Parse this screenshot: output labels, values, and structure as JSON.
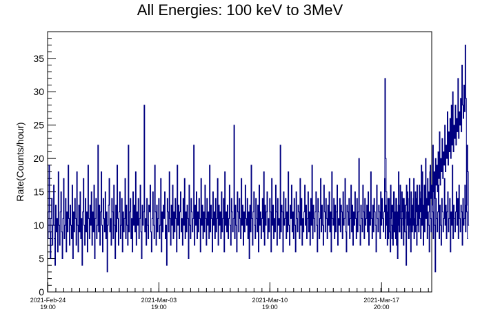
{
  "chart_data": {
    "type": "line",
    "title": "All Energies:  100 keV to 3MeV",
    "xlabel": "",
    "ylabel": "Rate(Counts/hour)",
    "ylim": [
      0,
      39
    ],
    "xlim": [
      "2021-02-24T18:30",
      "2021-03-21T00:00"
    ],
    "grid": false,
    "legend": "none",
    "line_color": "#000080",
    "y_ticks": [
      0,
      5,
      10,
      15,
      20,
      25,
      30,
      35
    ],
    "x_ticks": [
      {
        "at": "2021-02-24T19:00",
        "date": "2021-Feb-24",
        "time": "19:00"
      },
      {
        "at": "2021-03-03T19:00",
        "date": "2021-Mar-03",
        "time": "19:00"
      },
      {
        "at": "2021-03-10T19:00",
        "date": "2021-Mar-10",
        "time": "19:00"
      },
      {
        "at": "2021-03-17T20:00",
        "date": "2021-Mar-17",
        "time": "20:00"
      }
    ],
    "series": [
      {
        "segments": [
          {
            "start": "2021-02-24T18:30",
            "step_hours": 1,
            "values": [
              8,
              12,
              19,
              9,
              5,
              11,
              14,
              7,
              10,
              16,
              8,
              4,
              13,
              9,
              11,
              6,
              18,
              10,
              7,
              12,
              15,
              9,
              5,
              11,
              17,
              8,
              10,
              14,
              6,
              12,
              9,
              19,
              11,
              7,
              13,
              10,
              8,
              16,
              5,
              12,
              9,
              14,
              11,
              7,
              18,
              10,
              6,
              13,
              9,
              15,
              8,
              11,
              4,
              12,
              17,
              10,
              7,
              14,
              9,
              12,
              6,
              19,
              11,
              8,
              13,
              10,
              15,
              7,
              12,
              9,
              16,
              5,
              11,
              14,
              8,
              10,
              22,
              9,
              13,
              7,
              12,
              18,
              10,
              6,
              14,
              11,
              9,
              15,
              8,
              12,
              3,
              10,
              13,
              17,
              9,
              11,
              7,
              14,
              12,
              8,
              16,
              10,
              5,
              13,
              9,
              19,
              11,
              7,
              12,
              15,
              8,
              10,
              14,
              6,
              12,
              9,
              11,
              17,
              8,
              13,
              10,
              7,
              22,
              9,
              12,
              14,
              8,
              11,
              6,
              15,
              10,
              13,
              9,
              18,
              7,
              12,
              10,
              14,
              8,
              11,
              16,
              9,
              5,
              13,
              10,
              12,
              28,
              9,
              11,
              7,
              14,
              10,
              8,
              13,
              12,
              16,
              9,
              6,
              11,
              15,
              10,
              8,
              19,
              12,
              7,
              13,
              9,
              11,
              14,
              8,
              10,
              17,
              6,
              12,
              9,
              13,
              11,
              15,
              8,
              10,
              4,
              14,
              12,
              9,
              18,
              11,
              7,
              13,
              10,
              16,
              8,
              12,
              9,
              14,
              11,
              6,
              19,
              10,
              13,
              8,
              12,
              15,
              9,
              11,
              7,
              14,
              10,
              17,
              8,
              12,
              9,
              13,
              11,
              5,
              16,
              10,
              8,
              14,
              12,
              9,
              11,
              22,
              7,
              13,
              10,
              15,
              8,
              12,
              9,
              14,
              11,
              6,
              17,
              10,
              13,
              8,
              12,
              9,
              16,
              11,
              7,
              14,
              10,
              12,
              8,
              19,
              9,
              13,
              11,
              6,
              15,
              10,
              12,
              8,
              14,
              9,
              11,
              17,
              7,
              13,
              10,
              12,
              8,
              15,
              9,
              11,
              14,
              6,
              18,
              10,
              12,
              9,
              13,
              8,
              11,
              16,
              10,
              7,
              14,
              12,
              9,
              11,
              25,
              8,
              13,
              10,
              6,
              15,
              12,
              9,
              14,
              11,
              8,
              17,
              10,
              13,
              7,
              12,
              9,
              16,
              11,
              10,
              14,
              8,
              12,
              5,
              13,
              9,
              19,
              11,
              7,
              12,
              15,
              10,
              8,
              14,
              11,
              9,
              13,
              6,
              16,
              10,
              12,
              8,
              11,
              14,
              9,
              18,
              7,
              13,
              10,
              12,
              15,
              8,
              11,
              9,
              14,
              12,
              6,
              17,
              10,
              13,
              8,
              11,
              9,
              16,
              12,
              7,
              14,
              10,
              11,
              8,
              22,
              9,
              13,
              12,
              6,
              15,
              10,
              11,
              14,
              8,
              12,
              9,
              18,
              10,
              7,
              13,
              11,
              16,
              9,
              12,
              8,
              14,
              10,
              6,
              15,
              11,
              9,
              13,
              12,
              8,
              17,
              10,
              14,
              7,
              11,
              9,
              12,
              16,
              10,
              13,
              8,
              11,
              15,
              9,
              12,
              7,
              14,
              10,
              19,
              8,
              13,
              11,
              9,
              12,
              15,
              10,
              6,
              14,
              12,
              8,
              11,
              17,
              9,
              13,
              10,
              7,
              16,
              12,
              9,
              14,
              11,
              8,
              13,
              10,
              15,
              9,
              12,
              6,
              18,
              11,
              10,
              14,
              8,
              13,
              9,
              12,
              16,
              7,
              11,
              10,
              14,
              9,
              13,
              12,
              8,
              15,
              10,
              11,
              17,
              9,
              6,
              13,
              12,
              10,
              14,
              8,
              11,
              16,
              9,
              13,
              7,
              12,
              10,
              15,
              11,
              8,
              14,
              9,
              12,
              20,
              10,
              7,
              13,
              11,
              9,
              16,
              12,
              8,
              14,
              10,
              11,
              13,
              9,
              15,
              7,
              12,
              10,
              18,
              11,
              8,
              13,
              9,
              14,
              12,
              10,
              6,
              16,
              11,
              9,
              13,
              12,
              8,
              15,
              10,
              14,
              11,
              9,
              12,
              17,
              8,
              13,
              10,
              7,
              14,
              12,
              9,
              11,
              16,
              10,
              8,
              13,
              12,
              15,
              9,
              11,
              14,
              7,
              12,
              10,
              18,
              9,
              13,
              11,
              8,
              15,
              12,
              10,
              14,
              9,
              11,
              13,
              16,
              10,
              12,
              8,
              14,
              11,
              9,
              15,
              12,
              13,
              10,
              17,
              11,
              9,
              14,
              12,
              16,
              10,
              13,
              11,
              15,
              12,
              14,
              10,
              18,
              13,
              11,
              16,
              12,
              20,
              14,
              11,
              17,
              13,
              15,
              12,
              19,
              14,
              16,
              13,
              22,
              15,
              18,
              14,
              20,
              16,
              19,
              15,
              21,
              17,
              24,
              16,
              20,
              18,
              23,
              17,
              21,
              19,
              25,
              18,
              22,
              20,
              27,
              19,
              24,
              21,
              26,
              20,
              28,
              22,
              30,
              21,
              25,
              23,
              28,
              22,
              26,
              24,
              32,
              23,
              27,
              25,
              29,
              24,
              34,
              28,
              26,
              31,
              27,
              37,
              29,
              13,
              22,
              18,
              10
            ]
          },
          {
            "start": "2021-03-18T00:00",
            "step_hours": 1,
            "values": [
              16,
              32,
              20,
              15,
              10,
              12,
              8,
              14,
              9,
              6,
              11,
              13,
              10,
              7,
              15,
              9,
              12,
              8,
              14,
              11,
              5,
              13,
              10,
              9,
              16,
              12,
              8,
              11,
              14,
              7,
              10,
              13,
              9,
              4,
              12,
              15,
              11,
              8,
              17,
              10,
              6,
              13,
              9,
              12,
              14,
              8,
              11,
              15,
              10,
              7,
              13,
              12,
              9,
              16,
              11,
              8,
              19,
              10,
              13,
              7,
              12,
              9,
              15,
              11,
              14,
              8,
              12,
              10,
              6,
              18,
              11,
              9,
              13,
              12,
              8,
              15,
              10,
              3,
              14,
              11,
              9,
              12,
              16,
              8,
              13,
              10,
              7,
              14,
              12,
              9,
              11,
              17,
              10,
              13,
              8,
              12,
              15,
              9,
              11,
              14,
              6,
              12,
              10,
              19,
              8,
              13,
              11,
              9,
              12,
              15,
              10,
              14,
              8,
              16,
              11,
              9,
              13,
              12,
              7,
              14,
              10,
              11,
              16,
              9,
              13,
              12,
              8
            ]
          }
        ]
      }
    ]
  }
}
